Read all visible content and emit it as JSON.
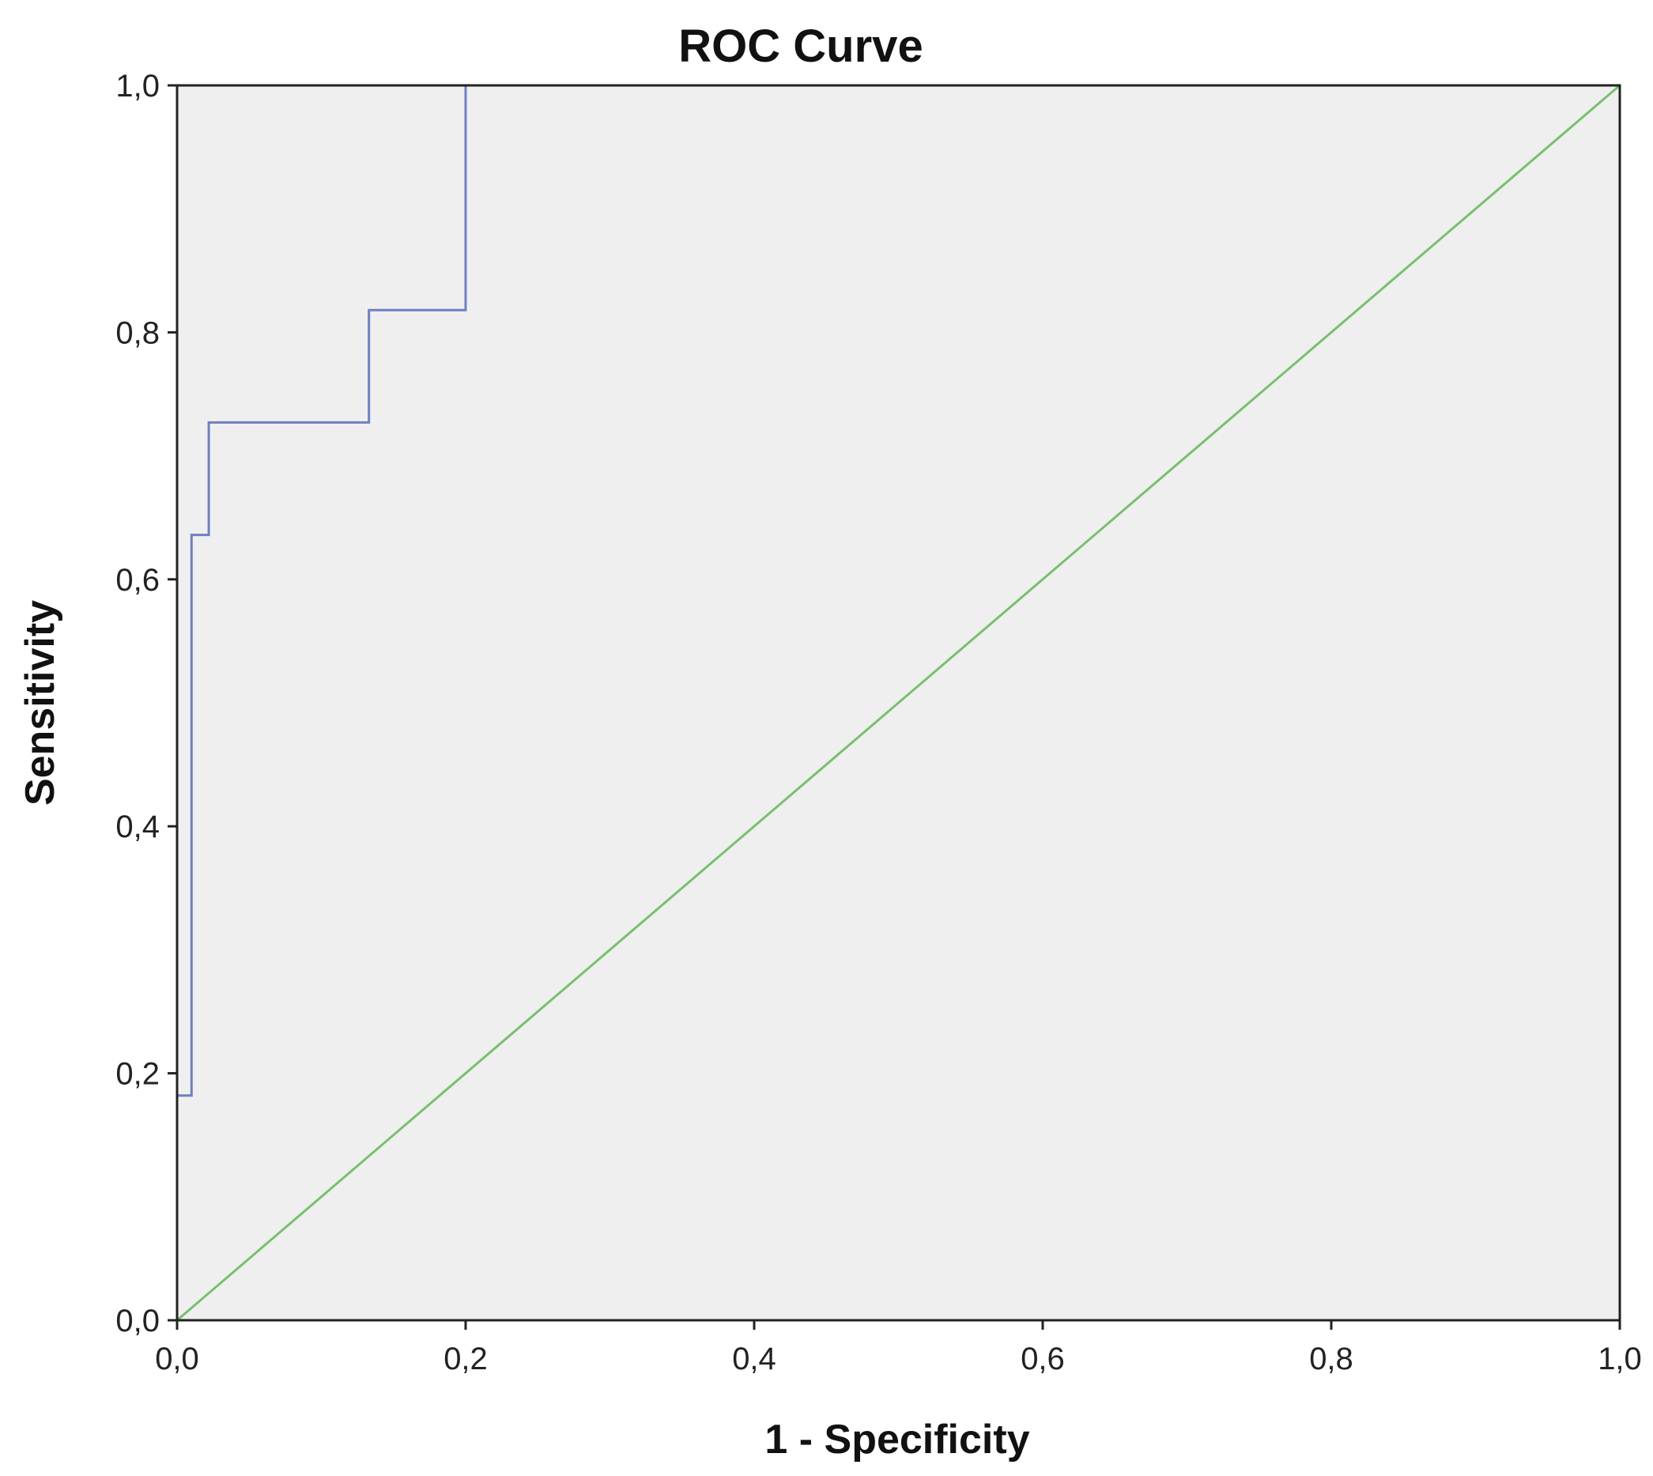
{
  "chart_data": {
    "type": "line",
    "title": "ROC Curve",
    "xlabel": "1 - Specificity",
    "ylabel": "Sensitivity",
    "xlim": [
      0,
      1
    ],
    "ylim": [
      0,
      1
    ],
    "x_ticks": [
      0,
      0.2,
      0.4,
      0.6,
      0.8,
      1.0
    ],
    "x_tick_labels": [
      "0,0",
      "0,2",
      "0,4",
      "0,6",
      "0,8",
      "1,0"
    ],
    "y_ticks": [
      0,
      0.2,
      0.4,
      0.6,
      0.8,
      1.0
    ],
    "y_tick_labels": [
      "0,0",
      "0,2",
      "0,4",
      "0,6",
      "0,8",
      "1,0"
    ],
    "grid": false,
    "plot_background": "#efefef",
    "series": [
      {
        "color": "#6f7fc0",
        "step": true,
        "x": [
          0,
          0,
          0.01,
          0.01,
          0.022,
          0.022,
          0.133,
          0.133,
          0.2,
          0.2,
          1.0
        ],
        "y": [
          0,
          0.182,
          0.182,
          0.636,
          0.636,
          0.727,
          0.727,
          0.818,
          0.818,
          1.0,
          1.0
        ]
      },
      {
        "color": "#79bf6f",
        "x": [
          0,
          1
        ],
        "y": [
          0,
          1
        ]
      }
    ]
  }
}
